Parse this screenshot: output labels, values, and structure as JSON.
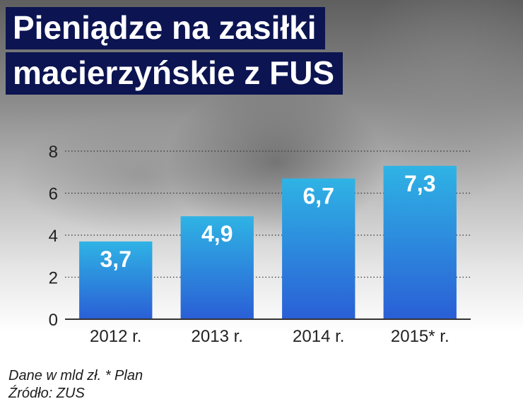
{
  "header": {
    "title_line1": "Pieniądze na zasiłki",
    "title_line2": "macierzyńskie z FUS"
  },
  "chart_data": {
    "type": "bar",
    "categories": [
      "2012 r.",
      "2013 r.",
      "2014 r.",
      "2015* r."
    ],
    "values": [
      3.7,
      4.9,
      6.7,
      7.3
    ],
    "value_labels": [
      "3,7",
      "4,9",
      "6,7",
      "7,3"
    ],
    "y_ticks": [
      0,
      2,
      4,
      6,
      8
    ],
    "ylim": [
      0,
      8
    ],
    "grid": true,
    "bar_color_top": "#2fb3e4",
    "bar_color_bottom": "#2a5fd6"
  },
  "footer": {
    "note": "Dane w mld zł. * Plan",
    "source": "Źródło: ZUS"
  }
}
